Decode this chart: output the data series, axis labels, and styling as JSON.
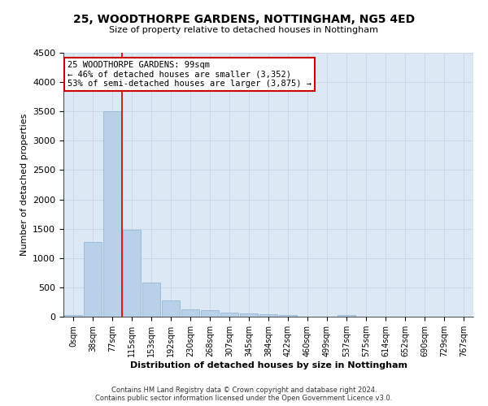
{
  "title": "25, WOODTHORPE GARDENS, NOTTINGHAM, NG5 4ED",
  "subtitle": "Size of property relative to detached houses in Nottingham",
  "xlabel": "Distribution of detached houses by size in Nottingham",
  "ylabel": "Number of detached properties",
  "bar_labels": [
    "0sqm",
    "38sqm",
    "77sqm",
    "115sqm",
    "153sqm",
    "192sqm",
    "230sqm",
    "268sqm",
    "307sqm",
    "345sqm",
    "384sqm",
    "422sqm",
    "460sqm",
    "499sqm",
    "537sqm",
    "575sqm",
    "614sqm",
    "652sqm",
    "690sqm",
    "729sqm",
    "767sqm"
  ],
  "bar_values": [
    30,
    1275,
    3500,
    1475,
    575,
    275,
    130,
    115,
    75,
    50,
    40,
    30,
    0,
    0,
    25,
    0,
    0,
    0,
    0,
    0,
    0
  ],
  "bar_color": "#b8d0e8",
  "bar_edge_color": "#8ab0d0",
  "property_line_x": 2.5,
  "annotation_text": "25 WOODTHORPE GARDENS: 99sqm\n← 46% of detached houses are smaller (3,352)\n53% of semi-detached houses are larger (3,875) →",
  "annotation_box_color": "#ffffff",
  "annotation_box_edge_color": "#cc0000",
  "vline_color": "#cc0000",
  "grid_color": "#c8d8e8",
  "background_color": "#dce8f4",
  "ylim": [
    0,
    4500
  ],
  "yticks": [
    0,
    500,
    1000,
    1500,
    2000,
    2500,
    3000,
    3500,
    4000,
    4500
  ],
  "footer_line1": "Contains HM Land Registry data © Crown copyright and database right 2024.",
  "footer_line2": "Contains public sector information licensed under the Open Government Licence v3.0."
}
